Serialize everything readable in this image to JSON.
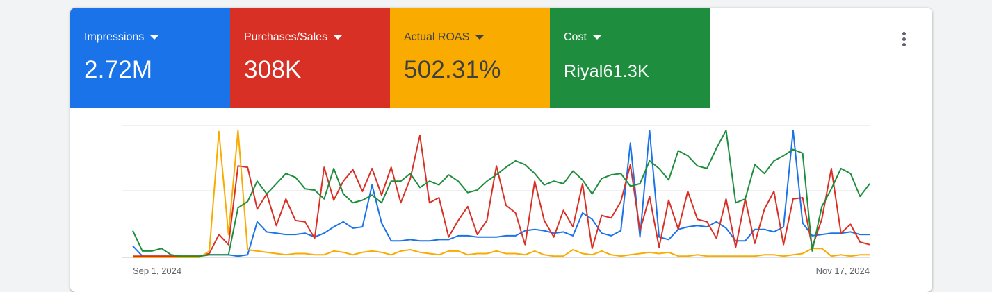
{
  "metrics": [
    {
      "label": "Impressions",
      "value": "2.72M",
      "color": "#1a73e8",
      "text_color": "#ffffff"
    },
    {
      "label": "Purchases/Sales",
      "value": "308K",
      "color": "#d93025",
      "text_color": "#ffffff"
    },
    {
      "label": "Actual ROAS",
      "value": "502.31%",
      "color": "#f9ab00",
      "text_color": "#3c4043"
    },
    {
      "label": "Cost",
      "value": "Riyal61.3K",
      "color": "#1e8e3e",
      "text_color": "#ffffff"
    }
  ],
  "more_menu_icon": "more-vert-icon",
  "chart_data": {
    "type": "line",
    "x_start_label": "Sep 1, 2024",
    "x_end_label": "Nov 17, 2024",
    "points_per_series": 78,
    "y_range": [
      0,
      100
    ],
    "grid": true,
    "series": [
      {
        "metric": "Impressions",
        "color": "#1a73e8",
        "values": [
          9,
          1,
          1,
          1,
          1,
          1,
          1,
          1,
          2,
          2,
          2,
          1,
          2,
          28,
          20,
          19,
          18,
          18,
          19,
          16,
          19,
          24,
          28,
          23,
          24,
          57,
          27,
          13,
          13,
          14,
          13,
          13,
          14,
          14,
          17,
          17,
          16,
          16,
          16,
          17,
          17,
          21,
          22,
          21,
          19,
          20,
          17,
          35,
          30,
          19,
          17,
          21,
          90,
          16,
          100,
          16,
          14,
          22,
          24,
          25,
          24,
          28,
          23,
          13,
          13,
          22,
          22,
          20,
          24,
          100,
          27,
          17,
          18,
          19,
          19,
          20,
          18,
          18
        ]
      },
      {
        "metric": "Purchases/Sales",
        "color": "#d93025",
        "values": [
          1,
          1,
          1,
          1,
          1,
          1,
          1,
          1,
          3,
          18,
          10,
          72,
          71,
          38,
          50,
          25,
          46,
          29,
          28,
          15,
          71,
          45,
          60,
          69,
          52,
          70,
          49,
          71,
          43,
          62,
          96,
          43,
          47,
          16,
          29,
          40,
          18,
          29,
          72,
          41,
          35,
          10,
          60,
          29,
          16,
          37,
          24,
          58,
          7,
          33,
          31,
          44,
          73,
          21,
          48,
          8,
          45,
          22,
          52,
          30,
          28,
          15,
          46,
          8,
          46,
          11,
          38,
          52,
          10,
          46,
          47,
          8,
          30,
          70,
          19,
          26,
          12,
          10
        ]
      },
      {
        "metric": "Actual ROAS",
        "color": "#f9ab00",
        "values": [
          0,
          0,
          0,
          0,
          0,
          0,
          0,
          0,
          5,
          99,
          18,
          100,
          6,
          5,
          4,
          3,
          2,
          3,
          3,
          2,
          2,
          5,
          4,
          2,
          4,
          5,
          4,
          2,
          5,
          6,
          4,
          3,
          2,
          5,
          5,
          2,
          3,
          3,
          5,
          3,
          3,
          2,
          5,
          2,
          1,
          1,
          6,
          3,
          2,
          5,
          2,
          1,
          2,
          3,
          4,
          3,
          4,
          1,
          1,
          2,
          1,
          1,
          1,
          1,
          1,
          1,
          2,
          2,
          1,
          2,
          3,
          7,
          7,
          1,
          2,
          1,
          2,
          2
        ]
      },
      {
        "metric": "Cost",
        "color": "#1e8e3e",
        "values": [
          21,
          5,
          5,
          7,
          2,
          1,
          1,
          1,
          2,
          2,
          2,
          39,
          44,
          60,
          50,
          58,
          66,
          63,
          54,
          53,
          46,
          70,
          50,
          43,
          45,
          49,
          43,
          60,
          60,
          66,
          55,
          60,
          57,
          65,
          60,
          51,
          53,
          60,
          65,
          71,
          76,
          73,
          66,
          57,
          60,
          58,
          68,
          61,
          50,
          62,
          65,
          66,
          56,
          58,
          76,
          70,
          61,
          84,
          80,
          72,
          70,
          86,
          100,
          43,
          46,
          73,
          66,
          76,
          80,
          85,
          82,
          5,
          40,
          54,
          70,
          66,
          48,
          58
        ]
      }
    ]
  }
}
